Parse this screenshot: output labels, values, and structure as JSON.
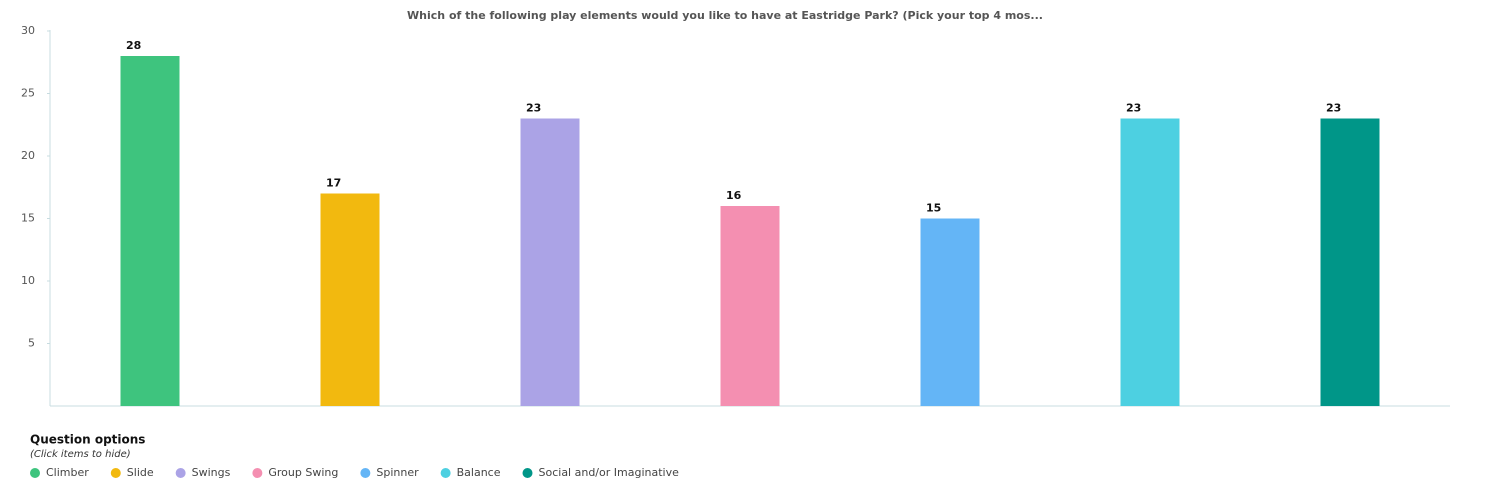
{
  "chart_data": {
    "type": "bar",
    "title": "Which of the following play elements would you like to have at Eastridge Park? (Pick your top 4 mos...",
    "categories": [
      "Climber",
      "Slide",
      "Swings",
      "Group Swing",
      "Spinner",
      "Balance",
      "Social and/or Imaginative"
    ],
    "values": [
      28,
      17,
      23,
      16,
      15,
      23,
      23
    ],
    "colors": [
      "#3ec47e",
      "#f2b90f",
      "#aba3e6",
      "#f48fb1",
      "#64b5f6",
      "#4dd0e1",
      "#009688"
    ],
    "ylim": [
      0,
      30
    ],
    "yticks": [
      5,
      10,
      15,
      20,
      25,
      30
    ],
    "legend_title": "Question options",
    "legend_hint": "(Click items to hide)"
  }
}
